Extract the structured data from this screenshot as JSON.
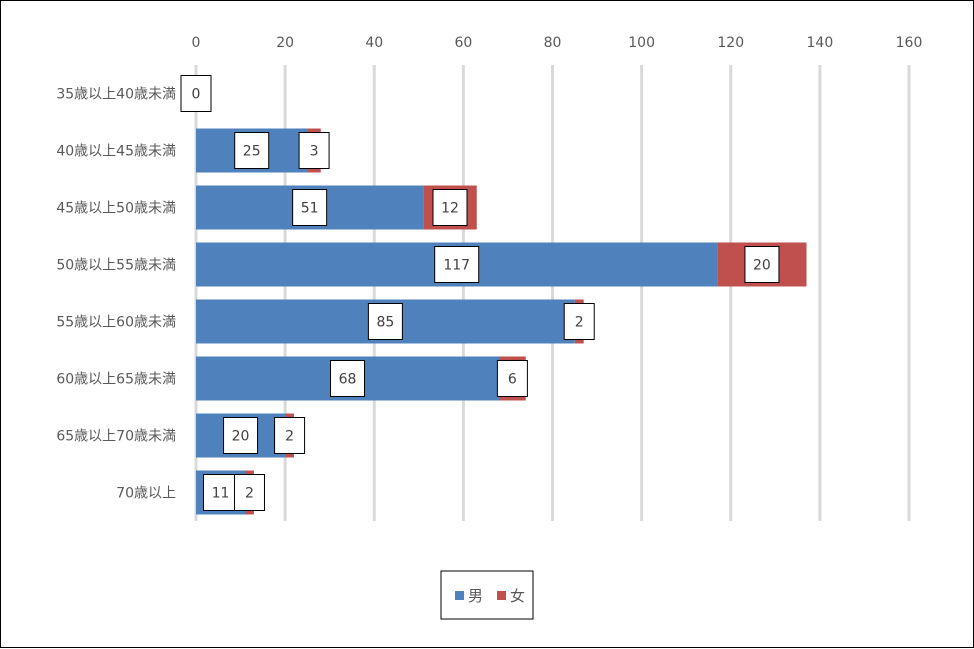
{
  "chart_data": {
    "type": "bar",
    "orientation": "horizontal",
    "stacked": true,
    "categories": [
      "35歳以上40歳未満",
      "40歳以上45歳未満",
      "45歳以上50歳未満",
      "50歳以上55歳未満",
      "55歳以上60歳未満",
      "60歳以上65歳未満",
      "65歳以上70歳未満",
      "70歳以上"
    ],
    "series": [
      {
        "name": "男",
        "color": "#4f81bd",
        "values": [
          0,
          25,
          51,
          117,
          85,
          68,
          20,
          11
        ]
      },
      {
        "name": "女",
        "color": "#c0504d",
        "values": [
          0,
          3,
          12,
          20,
          2,
          6,
          2,
          2
        ]
      }
    ],
    "xlim": [
      0,
      160
    ],
    "x_ticks": [
      "0",
      "20",
      "40",
      "60",
      "80",
      "100",
      "120",
      "140",
      "160"
    ],
    "axis_position": "top",
    "grid": true,
    "legend": "bottom"
  }
}
